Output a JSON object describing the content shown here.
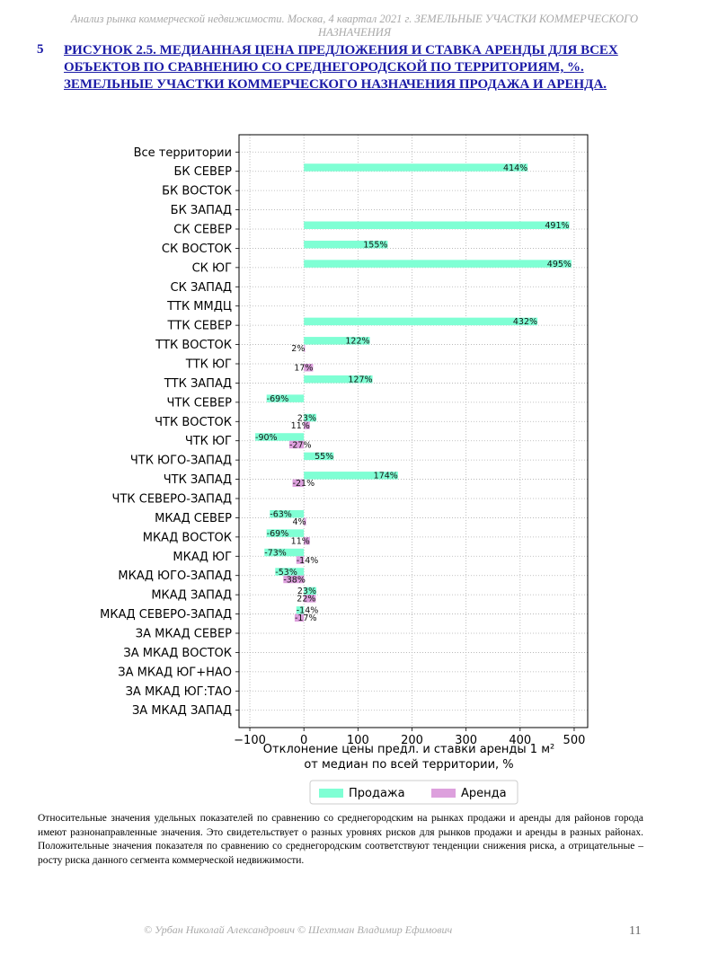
{
  "header": {
    "running_title": "Анализ рынка коммерческой недвижимости.  Москва, 4 квартал 2021 г.  ЗЕМЕЛЬНЫЕ УЧАСТКИ КОММЕРЧЕСКОГО НАЗНАЧЕНИЯ"
  },
  "figure": {
    "number": "5",
    "title": "РИСУНОК 2.5. МЕДИАННАЯ ЦЕНА ПРЕДЛОЖЕНИЯ И СТАВКА АРЕНДЫ ДЛЯ ВСЕХ ОБЪЕКТОВ ПО СРАВНЕНИЮ СО СРЕДНЕГОРОДСКОЙ ПО ТЕРРИТОРИЯМ, %. ЗЕМЕЛЬНЫЕ УЧАСТКИ КОММЕРЧЕСКОГО НАЗНАЧЕНИЯ ПРОДАЖА И АРЕНДА."
  },
  "caption": "Относительные значения удельных показателей по сравнению со среднегородским на рынках продажи и аренды для районов города имеют разнонаправленные значения. Это свидетельствует о разных уровнях рисков для рынков продажи и аренды в разных районах. Положительные значения показателя по сравнению со среднегородским соответствуют тенденции снижения риска, а отрицательные – росту риска данного сегмента коммерческой недвижимости.",
  "footer": {
    "authors": "© Урбан Николай Александрович  © Шехтман Владимир Ефимович",
    "page": "11"
  },
  "chart_data": {
    "type": "bar",
    "orientation": "horizontal",
    "categories": [
      "Все территории",
      "БК СЕВЕР",
      "БК ВОСТОК",
      "БК ЗАПАД",
      "СК СЕВЕР",
      "СК ВОСТОК",
      "СК ЮГ",
      "СК ЗАПАД",
      "ТТК ММДЦ",
      "ТТК СЕВЕР",
      "ТТК ВОСТОК",
      "ТТК ЮГ",
      "ТТК ЗАПАД",
      "ЧТК СЕВЕР",
      "ЧТК ВОСТОК",
      "ЧТК ЮГ",
      "ЧТК ЮГО-ЗАПАД",
      "ЧТК ЗАПАД",
      "ЧТК СЕВЕРО-ЗАПАД",
      "МКАД СЕВЕР",
      "МКАД ВОСТОК",
      "МКАД ЮГ",
      "МКАД ЮГО-ЗАПАД",
      "МКАД ЗАПАД",
      "МКАД СЕВЕРО-ЗАПАД",
      "ЗА МКАД СЕВЕР",
      "ЗА МКАД ВОСТОК",
      "ЗА МКАД ЮГ+НАО",
      "ЗА МКАД ЮГ:ТАО",
      "ЗА МКАД ЗАПАД"
    ],
    "series": [
      {
        "name": "Продажа",
        "color": "#7fffd4",
        "values": [
          null,
          414,
          null,
          null,
          491,
          155,
          495,
          null,
          null,
          432,
          122,
          null,
          127,
          -69,
          23,
          -90,
          55,
          174,
          null,
          -63,
          -69,
          -73,
          -53,
          23,
          -14,
          null,
          null,
          null,
          null,
          null
        ],
        "labels": [
          null,
          "414%",
          null,
          null,
          "491%",
          "155%",
          "495%",
          null,
          null,
          "432%",
          "122%",
          null,
          "127%",
          "-69%",
          "23%",
          "-90%",
          "55%",
          "174%",
          null,
          "-63%",
          "-69%",
          "-73%",
          "-53%",
          "23%",
          "-14%",
          null,
          null,
          null,
          null,
          null
        ]
      },
      {
        "name": "Аренда",
        "color": "#dda0dd",
        "values": [
          null,
          null,
          null,
          null,
          null,
          null,
          null,
          null,
          null,
          null,
          2,
          17,
          null,
          null,
          11,
          -27,
          null,
          -21,
          null,
          4,
          11,
          -14,
          -38,
          22,
          -17,
          null,
          null,
          null,
          null,
          null
        ],
        "labels": [
          null,
          null,
          null,
          null,
          null,
          null,
          null,
          null,
          null,
          null,
          "2%",
          "17%",
          null,
          null,
          "11%",
          "-27%",
          null,
          "-21%",
          null,
          "4%",
          "11%",
          "-14%",
          "-38%",
          "22%",
          "-17%",
          null,
          null,
          null,
          null,
          null
        ]
      }
    ],
    "xlabel": "Отклонение цены предл. и ставки аренды 1 м²\nот медиан по всей территории, %",
    "ylabel": "",
    "xlim": [
      -120,
      525
    ],
    "xticks": [
      -100,
      0,
      100,
      200,
      300,
      400,
      500
    ],
    "xtick_labels": [
      "−100",
      "0",
      "100",
      "200",
      "300",
      "400",
      "500"
    ],
    "grid": true,
    "grid_style": "dotted",
    "legend_position": "bottom-center"
  }
}
